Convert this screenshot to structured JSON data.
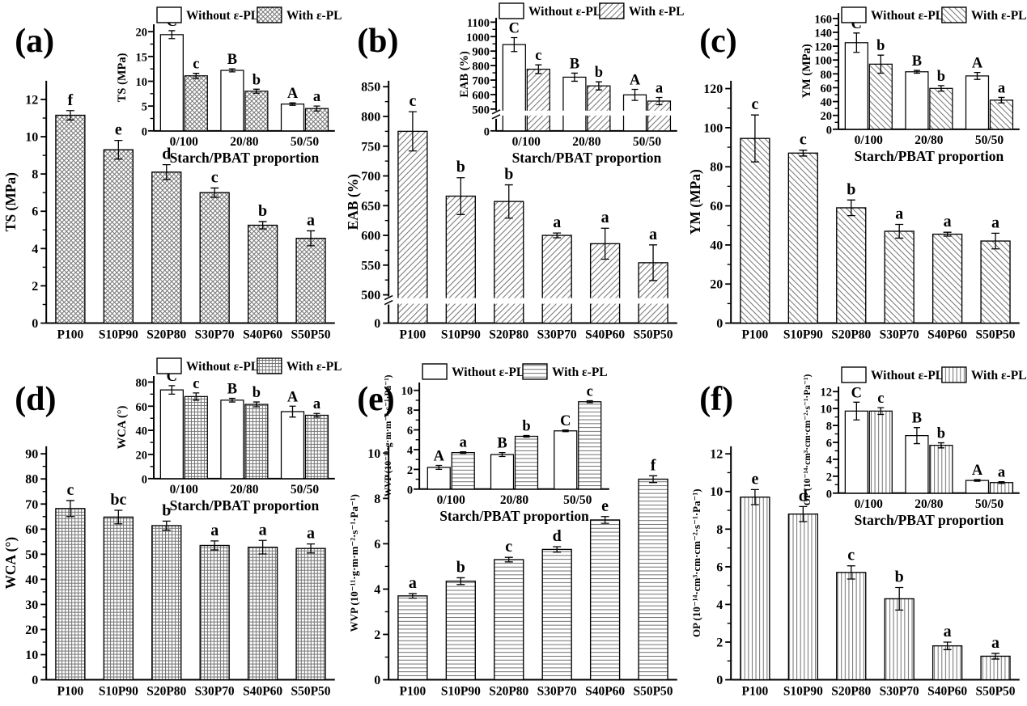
{
  "figure": {
    "legend": {
      "without": "Without ε-PL",
      "with": "With ε-PL"
    },
    "inset_xlabel": "Starch/PBAT proportion",
    "colors": {
      "axis": "#000000",
      "hatch": "#757575",
      "background": "#ffffff"
    }
  },
  "chart_data": [
    {
      "id": "a",
      "panel_label": "(a)",
      "type": "bar",
      "pattern": "diamond-crosshatch",
      "main": {
        "ylabel": "TS (MPa)",
        "ylim": [
          0,
          13
        ],
        "yticks": [
          0,
          2,
          4,
          6,
          8,
          10,
          12
        ],
        "categories": [
          "P100",
          "S10P90",
          "S20P80",
          "S30P70",
          "S40P60",
          "S50P50"
        ],
        "values": [
          11.15,
          9.3,
          8.1,
          7.0,
          5.25,
          4.55
        ],
        "errors": [
          0.25,
          0.5,
          0.4,
          0.25,
          0.2,
          0.4
        ],
        "letters": [
          "f",
          "e",
          "d",
          "c",
          "b",
          "a"
        ]
      },
      "inset": {
        "ylabel": "TS (MPa)",
        "xlabel": "Starch/PBAT proportion",
        "ylim": [
          0,
          21.5
        ],
        "yticks": [
          0,
          5,
          10,
          15,
          20
        ],
        "categories": [
          "0/100",
          "20/80",
          "50/50"
        ],
        "series": [
          {
            "name": "Without ε-PL",
            "values": [
              19.4,
              12.2,
              5.4
            ],
            "errors": [
              0.8,
              0.3,
              0.25
            ],
            "letters": [
              "C",
              "B",
              "A"
            ]
          },
          {
            "name": "With ε-PL",
            "values": [
              11.1,
              8.0,
              4.5
            ],
            "errors": [
              0.5,
              0.4,
              0.5
            ],
            "letters": [
              "c",
              "b",
              "a"
            ]
          }
        ]
      }
    },
    {
      "id": "b",
      "panel_label": "(b)",
      "type": "bar",
      "pattern": "diagonal-down",
      "main": {
        "ylabel": "EAB (%)",
        "ylim": [
          500,
          860
        ],
        "yticks": [
          500,
          550,
          600,
          650,
          700,
          750,
          800,
          850
        ],
        "axis_break": true,
        "break_resume": 500,
        "categories": [
          "P100",
          "S10P90",
          "S20P80",
          "S30P70",
          "S40P60",
          "S50P50"
        ],
        "values": [
          775,
          666,
          657,
          600,
          586,
          554
        ],
        "errors": [
          33,
          31,
          28,
          4,
          26,
          30
        ],
        "letters": [
          "c",
          "b",
          "b",
          "a",
          "a",
          "a"
        ]
      },
      "inset": {
        "ylabel": "EAB (%)",
        "xlabel": "Starch/PBAT proportion",
        "ylim": [
          500,
          1130
        ],
        "yticks": [
          500,
          600,
          700,
          800,
          900,
          1000,
          1100
        ],
        "axis_break": true,
        "break_resume": 500,
        "categories": [
          "0/100",
          "20/80",
          "50/50"
        ],
        "series": [
          {
            "name": "Without ε-PL",
            "values": [
              945,
              720,
              598
            ],
            "errors": [
              48,
              28,
              38
            ],
            "letters": [
              "C",
              "B",
              "A"
            ]
          },
          {
            "name": "With ε-PL",
            "values": [
              775,
              660,
              555
            ],
            "errors": [
              30,
              28,
              25
            ],
            "letters": [
              "c",
              "b",
              "a"
            ]
          }
        ]
      }
    },
    {
      "id": "c",
      "panel_label": "(c)",
      "type": "bar",
      "pattern": "diagonal-up",
      "main": {
        "ylabel": "YM (MPa)",
        "ylim": [
          0,
          124
        ],
        "yticks": [
          0,
          20,
          40,
          60,
          80,
          100,
          120
        ],
        "categories": [
          "P100",
          "S10P90",
          "S20P80",
          "S30P70",
          "S40P60",
          "S50P50"
        ],
        "values": [
          94.5,
          87,
          59,
          47,
          45.5,
          42
        ],
        "errors": [
          12,
          1.5,
          4,
          3.5,
          1,
          4
        ],
        "letters": [
          "c",
          "c",
          "b",
          "a",
          "a",
          "a"
        ]
      },
      "inset": {
        "ylabel": "YM (MPa)",
        "xlabel": "Starch/PBAT proportion",
        "ylim": [
          0,
          168
        ],
        "yticks": [
          0,
          20,
          40,
          60,
          80,
          100,
          120,
          140,
          160
        ],
        "categories": [
          "0/100",
          "20/80",
          "50/50"
        ],
        "series": [
          {
            "name": "Without ε-PL",
            "values": [
              125,
              83,
              77
            ],
            "errors": [
              14,
              2,
              5
            ],
            "letters": [
              "C",
              "B",
              "A"
            ]
          },
          {
            "name": "With ε-PL",
            "values": [
              94,
              59,
              42
            ],
            "errors": [
              13,
              4,
              4
            ],
            "letters": [
              "b",
              "b",
              "a"
            ]
          }
        ]
      }
    },
    {
      "id": "d",
      "panel_label": "(d)",
      "type": "bar",
      "pattern": "grid",
      "main": {
        "ylabel": "WCA (°)",
        "ylim": [
          0,
          93
        ],
        "yticks": [
          0,
          10,
          20,
          30,
          40,
          50,
          60,
          70,
          80,
          90
        ],
        "categories": [
          "P100",
          "S10P90",
          "S20P80",
          "S30P70",
          "S40P60",
          "S50P50"
        ],
        "values": [
          68.2,
          64.8,
          61.4,
          53.5,
          52.8,
          52.3
        ],
        "errors": [
          3.2,
          2.7,
          1.8,
          1.8,
          2.7,
          1.8
        ],
        "letters": [
          "c",
          "bc",
          "b",
          "a",
          "a",
          "a"
        ]
      },
      "inset": {
        "ylabel": "WCA (°)",
        "xlabel": "Starch/PBAT proportion",
        "ylim": [
          0,
          85
        ],
        "yticks": [
          0,
          20,
          40,
          60,
          80
        ],
        "categories": [
          "0/100",
          "20/80",
          "50/50"
        ],
        "series": [
          {
            "name": "Without ε-PL",
            "values": [
              73.5,
              65,
              55.5
            ],
            "errors": [
              3.5,
              1.5,
              4.5
            ],
            "letters": [
              "C",
              "B",
              "A"
            ]
          },
          {
            "name": "With ε-PL",
            "values": [
              68,
              61.5,
              52.5
            ],
            "errors": [
              3,
              2,
              1.5
            ],
            "letters": [
              "c",
              "b",
              "a"
            ]
          }
        ]
      }
    },
    {
      "id": "e",
      "panel_label": "(e)",
      "type": "bar",
      "pattern": "horizontal-lines",
      "main": {
        "ylabel": "WVP (10⁻¹¹·g·m·m⁻²·s⁻¹·Pa⁻¹)",
        "ylim": [
          0,
          10.3
        ],
        "yticks": [
          0,
          2,
          4,
          6,
          8,
          10
        ],
        "categories": [
          "P100",
          "S10P90",
          "S20P80",
          "S30P70",
          "S40P60",
          "S50P50"
        ],
        "values": [
          3.7,
          4.35,
          5.3,
          5.75,
          7.05,
          8.85
        ],
        "errors": [
          0.1,
          0.15,
          0.1,
          0.12,
          0.15,
          0.15
        ],
        "letters": [
          "a",
          "b",
          "c",
          "d",
          "e",
          "f"
        ]
      },
      "inset": {
        "ylabel": "WVP (10⁻¹¹·g·m·m⁻²·s⁻¹·Pa⁻¹)",
        "xlabel": "Starch/PBAT proportion",
        "ylim": [
          0,
          10.8
        ],
        "yticks": [
          0,
          2,
          4,
          6,
          8,
          10
        ],
        "categories": [
          "0/100",
          "20/80",
          "50/50"
        ],
        "series": [
          {
            "name": "Without ε-PL",
            "values": [
              2.2,
              3.5,
              5.9
            ],
            "errors": [
              0.2,
              0.2,
              0.08
            ],
            "letters": [
              "A",
              "B",
              "C"
            ]
          },
          {
            "name": "With ε-PL",
            "values": [
              3.7,
              5.35,
              8.85
            ],
            "errors": [
              0.08,
              0.08,
              0.1
            ],
            "letters": [
              "a",
              "b",
              "c"
            ]
          }
        ]
      }
    },
    {
      "id": "f",
      "panel_label": "(f)",
      "type": "bar",
      "pattern": "vertical-lines",
      "main": {
        "ylabel": "OP (10⁻¹⁴·cm³·cm·cm⁻²·s⁻¹·Pa⁻¹)",
        "ylim": [
          0,
          12.4
        ],
        "yticks": [
          0,
          2,
          4,
          6,
          8,
          10,
          12
        ],
        "categories": [
          "P100",
          "S10P90",
          "S20P80",
          "S30P70",
          "S40P60",
          "S50P50"
        ],
        "values": [
          9.7,
          8.8,
          5.7,
          4.3,
          1.8,
          1.25
        ],
        "errors": [
          0.4,
          0.4,
          0.35,
          0.6,
          0.2,
          0.15
        ],
        "letters": [
          "e",
          "d",
          "c",
          "b",
          "a",
          "a"
        ]
      },
      "inset": {
        "ylabel": "OP (10⁻¹⁴·cm³·cm·cm⁻²·s⁻¹·Pa⁻¹)",
        "xlabel": "Starch/PBAT proportion",
        "ylim": [
          0,
          12.6
        ],
        "yticks": [
          0,
          2,
          4,
          6,
          8,
          10,
          12
        ],
        "categories": [
          "0/100",
          "20/80",
          "50/50"
        ],
        "series": [
          {
            "name": "Without ε-PL",
            "values": [
              9.7,
              6.8,
              1.5
            ],
            "errors": [
              1.05,
              0.95,
              0.1
            ],
            "letters": [
              "C",
              "B",
              "A"
            ]
          },
          {
            "name": "With ε-PL",
            "values": [
              9.7,
              5.65,
              1.25
            ],
            "errors": [
              0.4,
              0.3,
              0.1
            ],
            "letters": [
              "c",
              "b",
              "a"
            ]
          }
        ]
      }
    }
  ]
}
